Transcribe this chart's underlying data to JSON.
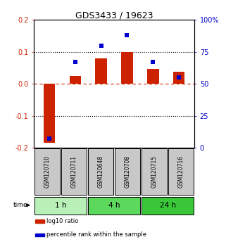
{
  "title": "GDS3433 / 19623",
  "samples": [
    "GSM120710",
    "GSM120711",
    "GSM120648",
    "GSM120708",
    "GSM120715",
    "GSM120716"
  ],
  "log10_ratio": [
    -0.185,
    0.025,
    0.08,
    0.1,
    0.047,
    0.037
  ],
  "percentile_rank": [
    7,
    67,
    80,
    88,
    67,
    55
  ],
  "ylim_left": [
    -0.2,
    0.2
  ],
  "ylim_right": [
    0,
    100
  ],
  "yticks_left": [
    -0.2,
    -0.1,
    0.0,
    0.1,
    0.2
  ],
  "yticks_right": [
    0,
    25,
    50,
    75,
    100
  ],
  "ytick_labels_right": [
    "0",
    "25",
    "50",
    "75",
    "100%"
  ],
  "time_groups": [
    {
      "label": "1 h",
      "samples": [
        0,
        1
      ],
      "color": "#b8f0b8"
    },
    {
      "label": "4 h",
      "samples": [
        2,
        3
      ],
      "color": "#5cd85c"
    },
    {
      "label": "24 h",
      "samples": [
        4,
        5
      ],
      "color": "#3ac83a"
    }
  ],
  "bar_color_red": "#cc2200",
  "bar_color_blue": "#0000cc",
  "bar_width": 0.45,
  "background_color": "#ffffff",
  "plot_bg_color": "#ffffff",
  "left_label_color": "#cc2200",
  "right_label_color": "#0000cc",
  "sample_box_color": "#c8c8c8",
  "legend_items": [
    {
      "label": "log10 ratio",
      "color": "#cc2200"
    },
    {
      "label": "percentile rank within the sample",
      "color": "#0000cc"
    }
  ]
}
